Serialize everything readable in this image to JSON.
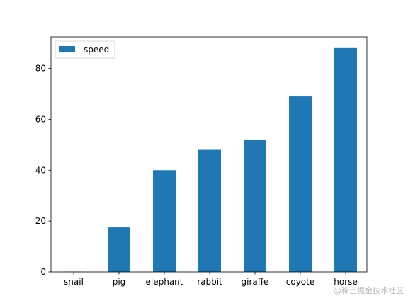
{
  "chart_data": {
    "type": "bar",
    "categories": [
      "snail",
      "pig",
      "elephant",
      "rabbit",
      "giraffe",
      "coyote",
      "horse"
    ],
    "series": [
      {
        "name": "speed",
        "values": [
          0.1,
          17.5,
          40,
          48,
          52,
          69,
          88
        ],
        "color": "#1f77b4"
      }
    ],
    "title": "",
    "xlabel": "",
    "ylabel": "",
    "ylim": [
      0,
      92.4
    ],
    "yticks": [
      0,
      20,
      40,
      60,
      80
    ],
    "grid": false,
    "legend": {
      "position": "top-left"
    }
  },
  "watermark": "@稀土掘金技术社区"
}
